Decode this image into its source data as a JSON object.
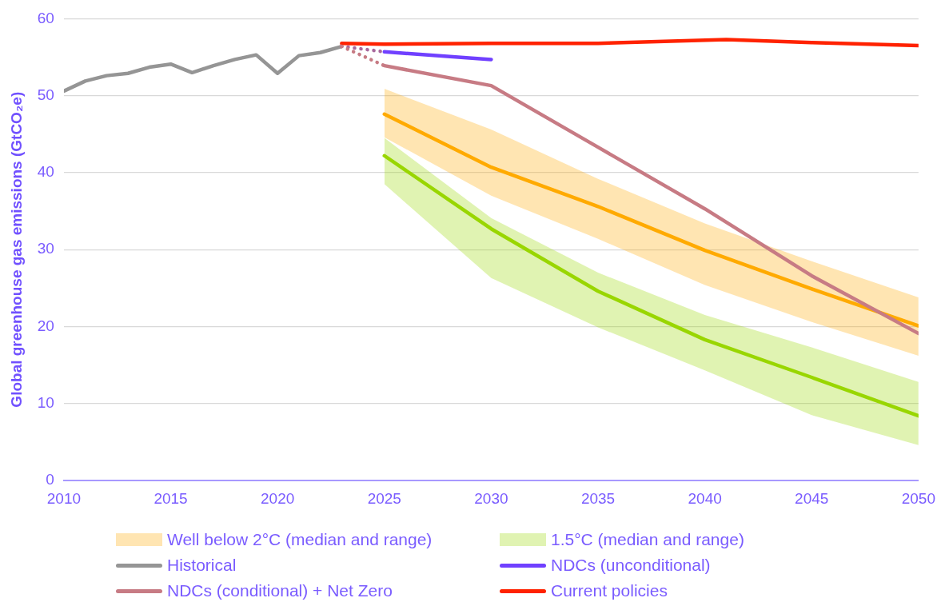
{
  "chart_data": {
    "type": "line",
    "ylabel": "Global greenhouse gas emissions (GtCO₂e)",
    "xlim": [
      2010,
      2050
    ],
    "xticks": [
      2010,
      2015,
      2020,
      2025,
      2030,
      2035,
      2040,
      2045,
      2050
    ],
    "ylim": [
      0,
      60
    ],
    "yticks": [
      0,
      10,
      20,
      30,
      40,
      50,
      60
    ],
    "grid": "y",
    "legend": "bottom",
    "marker": "none",
    "line_style": "solid",
    "series": [
      {
        "name": "Well below 2°C (median and range)",
        "color": "#ffaa00",
        "x": [
          2025,
          2030,
          2035,
          2040,
          2045,
          2050
        ],
        "values": [
          47.6,
          40.7,
          35.6,
          29.9,
          24.9,
          20.1
        ],
        "lower": [
          44.6,
          37.0,
          31.4,
          25.4,
          20.6,
          16.2
        ],
        "upper": [
          50.9,
          45.6,
          39.2,
          33.4,
          28.5,
          23.8
        ]
      },
      {
        "name": "1.5°C (median and range)",
        "color": "#99d600",
        "x": [
          2025,
          2030,
          2035,
          2040,
          2045,
          2050
        ],
        "values": [
          42.2,
          32.7,
          24.6,
          18.3,
          13.4,
          8.4
        ],
        "lower": [
          38.5,
          26.3,
          19.9,
          14.3,
          8.5,
          4.6
        ],
        "upper": [
          44.5,
          34.1,
          27.0,
          21.5,
          17.3,
          12.8
        ]
      },
      {
        "name": "Historical",
        "color": "#959595",
        "x": [
          2010,
          2011,
          2012,
          2013,
          2014,
          2015,
          2016,
          2017,
          2018,
          2019,
          2020,
          2021,
          2022,
          2023
        ],
        "values": [
          50.6,
          51.9,
          52.6,
          52.9,
          53.7,
          54.1,
          53.0,
          53.9,
          54.7,
          55.3,
          52.9,
          55.2,
          55.6,
          56.4
        ]
      },
      {
        "name": "NDCs (unconditional)",
        "color": "#7040ff",
        "x": [
          2025,
          2030
        ],
        "values": [
          55.7,
          54.7
        ]
      },
      {
        "name": "NDCs (conditional) + Net Zero",
        "color": "#c77b84",
        "x": [
          2025,
          2030,
          2035,
          2040,
          2045,
          2050
        ],
        "values": [
          53.9,
          51.3,
          43.3,
          35.3,
          26.6,
          19.1
        ]
      },
      {
        "name": "Current policies",
        "color": "#ff2200",
        "x": [
          2023,
          2025,
          2030,
          2035,
          2041,
          2045,
          2050
        ],
        "values": [
          56.8,
          56.7,
          56.8,
          56.8,
          57.3,
          56.9,
          56.5
        ]
      },
      {
        "color": "#a8679c",
        "x": [
          2023,
          2025
        ],
        "values": [
          56.4,
          55.7
        ],
        "line_style": "dotted"
      },
      {
        "color": "#c77b84",
        "x": [
          2023,
          2025
        ],
        "values": [
          56.4,
          53.9
        ],
        "line_style": "dotted"
      }
    ]
  }
}
